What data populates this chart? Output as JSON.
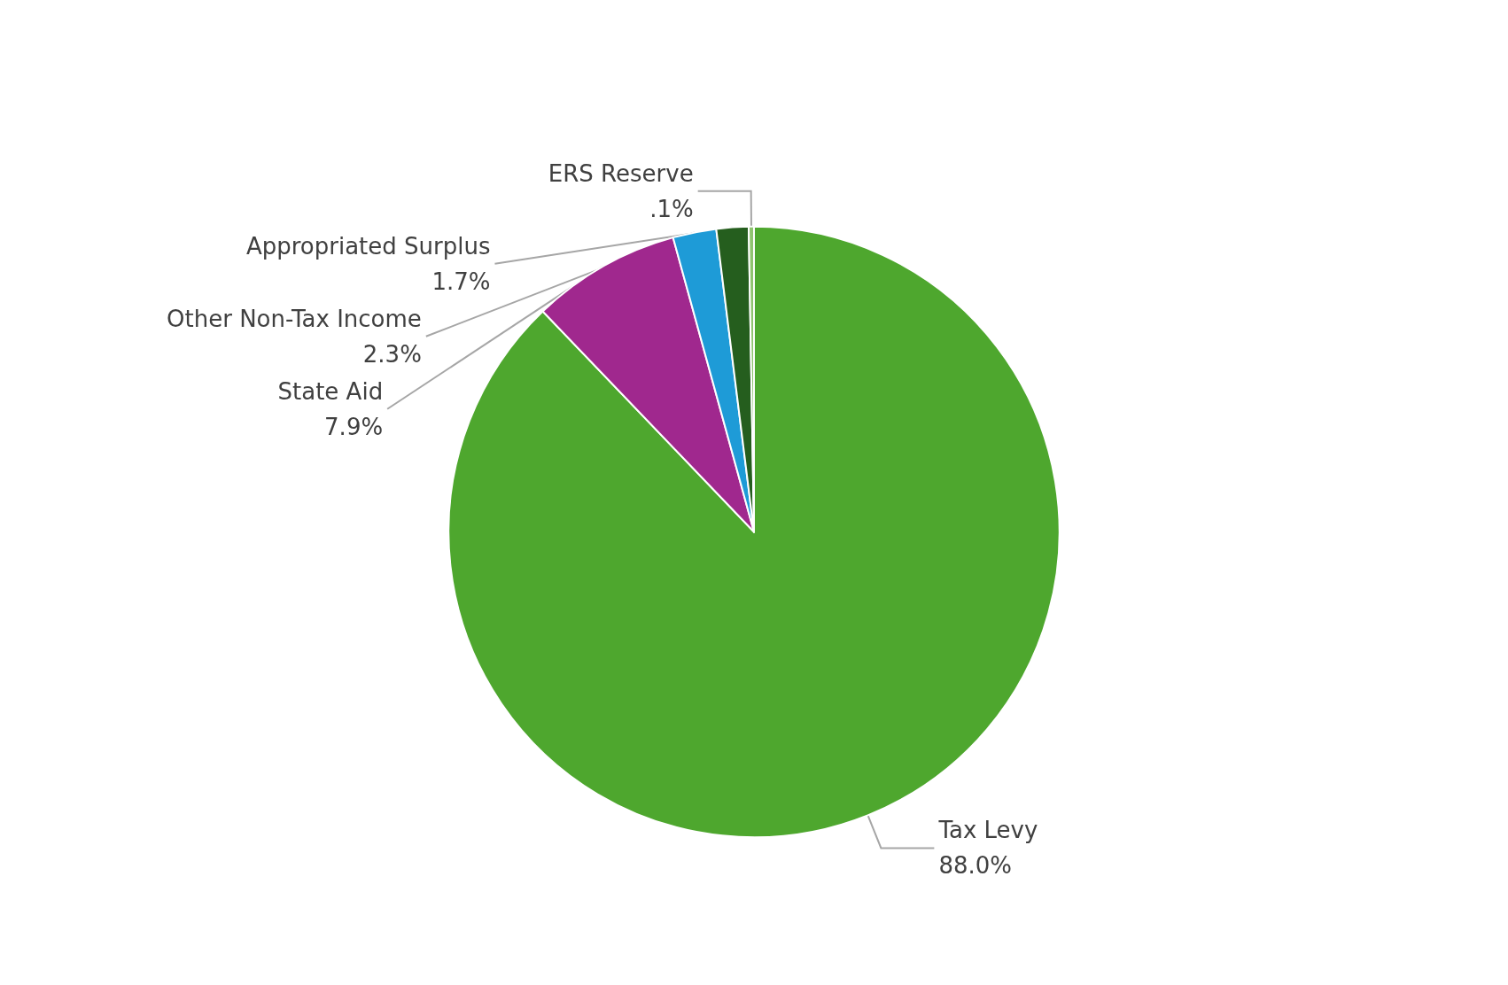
{
  "chart_data": {
    "type": "pie",
    "categories": [
      "Tax Levy",
      "State Aid",
      "Other Non-Tax Income",
      "Appropriated Surplus",
      "ERS Reserve"
    ],
    "values": [
      88.0,
      7.9,
      2.3,
      1.7,
      0.1
    ],
    "colors": [
      "#4ea72e",
      "#a0288e",
      "#1e9bd7",
      "#255e1e",
      "#8fc46f"
    ],
    "value_labels": [
      "88.0%",
      "7.9%",
      "2.3%",
      "1.7%",
      ".1%"
    ],
    "legend": false
  }
}
